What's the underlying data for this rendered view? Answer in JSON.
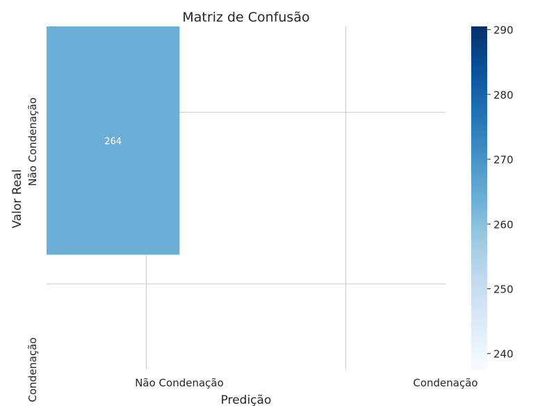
{
  "chart_data": {
    "type": "heatmap",
    "title": "Matriz de Confusão",
    "xlabel": "Predição",
    "ylabel": "Valor Real",
    "x_categories": [
      "Não Condenação",
      "Condenação"
    ],
    "y_categories": [
      "Não Condenação",
      "Condenação"
    ],
    "cells": [
      {
        "row": 0,
        "col": 0,
        "value": 264,
        "label": "264"
      }
    ],
    "colorbar": {
      "colormap": "Blues",
      "range": [
        237.5,
        290.5
      ],
      "ticks": [
        240,
        250,
        260,
        270,
        280,
        290
      ],
      "tick_labels": [
        "240",
        "250",
        "260",
        "270",
        "280",
        "290"
      ]
    },
    "grid": true
  }
}
